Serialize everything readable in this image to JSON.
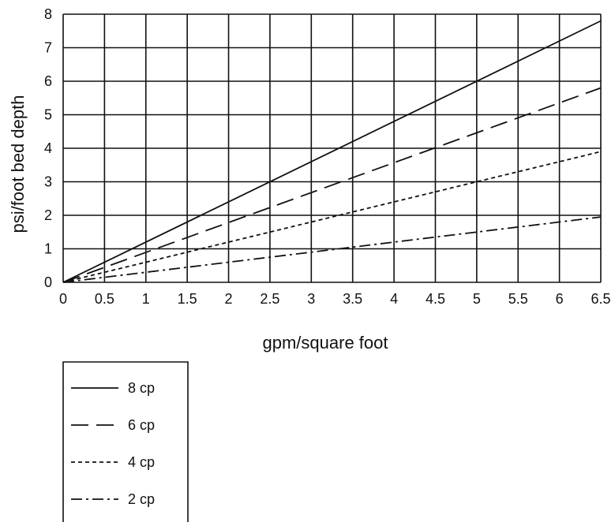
{
  "chart_data": {
    "type": "line",
    "title": "",
    "xlabel": "gpm/square foot",
    "ylabel": "psi/foot bed depth",
    "xlim": [
      0,
      6.5
    ],
    "ylim": [
      0,
      8
    ],
    "x_ticks": [
      "0",
      "0.5",
      "1",
      "1.5",
      "2",
      "2.5",
      "3",
      "3.5",
      "4",
      "4.5",
      "5",
      "5.5",
      "6",
      "6.5"
    ],
    "y_ticks": [
      "0",
      "1",
      "2",
      "3",
      "4",
      "5",
      "6",
      "7",
      "8"
    ],
    "grid": true,
    "legend_position": "below-left",
    "series": [
      {
        "name": "8 cp",
        "style": "solid",
        "x": [
          0,
          6.5
        ],
        "y": [
          0,
          7.8
        ]
      },
      {
        "name": "6 cp",
        "style": "long-dash",
        "x": [
          0,
          6.5
        ],
        "y": [
          0,
          5.8
        ]
      },
      {
        "name": "4 cp",
        "style": "short-dash",
        "x": [
          0,
          6.5
        ],
        "y": [
          0,
          3.9
        ]
      },
      {
        "name": "2 cp",
        "style": "dash-dot",
        "x": [
          0,
          6.5
        ],
        "y": [
          0,
          1.95
        ]
      }
    ]
  }
}
